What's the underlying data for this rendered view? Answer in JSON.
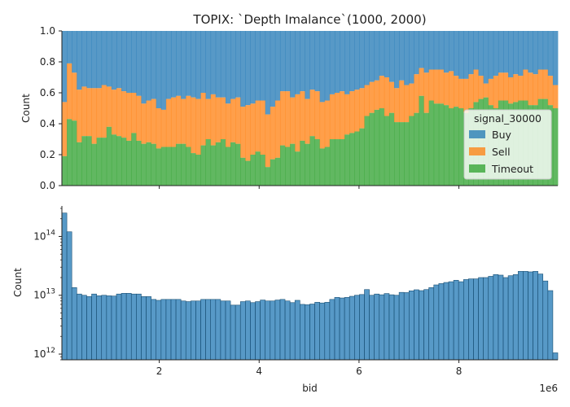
{
  "chart_data": [
    {
      "type": "area",
      "title": "TOPIX: `Depth Imalance`(1000, 2000)",
      "ylabel": "Count",
      "xlabel": "",
      "xlim": [
        50000,
        9980000
      ],
      "ylim": [
        0,
        1.0
      ],
      "yticks": [
        0.0,
        0.2,
        0.4,
        0.6,
        0.8,
        1.0
      ],
      "ytick_labels": [
        "0.0",
        "0.2",
        "0.4",
        "0.6",
        "0.8",
        "1.0"
      ],
      "stacked_normalized": true,
      "legend": {
        "title": "signal_30000",
        "placement": "right",
        "entries": [
          "Buy",
          "Sell",
          "Timeout"
        ]
      },
      "series": [
        {
          "name": "Buy",
          "color": "#1f77b4"
        },
        {
          "name": "Sell",
          "color": "#ff7f0e"
        },
        {
          "name": "Timeout",
          "color": "#2ca02c"
        }
      ],
      "bins": 100,
      "timeout_top": [
        0.19,
        0.43,
        0.42,
        0.28,
        0.32,
        0.32,
        0.27,
        0.31,
        0.31,
        0.38,
        0.33,
        0.32,
        0.31,
        0.29,
        0.34,
        0.29,
        0.27,
        0.28,
        0.27,
        0.24,
        0.25,
        0.25,
        0.25,
        0.27,
        0.27,
        0.25,
        0.21,
        0.2,
        0.26,
        0.3,
        0.26,
        0.28,
        0.3,
        0.25,
        0.28,
        0.27,
        0.18,
        0.16,
        0.2,
        0.22,
        0.2,
        0.12,
        0.17,
        0.18,
        0.26,
        0.25,
        0.27,
        0.22,
        0.29,
        0.27,
        0.32,
        0.3,
        0.24,
        0.25,
        0.3,
        0.3,
        0.3,
        0.33,
        0.34,
        0.35,
        0.37,
        0.45,
        0.47,
        0.49,
        0.5,
        0.45,
        0.47,
        0.41,
        0.41,
        0.41,
        0.45,
        0.47,
        0.58,
        0.47,
        0.55,
        0.53,
        0.53,
        0.52,
        0.5,
        0.51,
        0.5,
        0.47,
        0.5,
        0.54,
        0.56,
        0.57,
        0.52,
        0.5,
        0.55,
        0.55,
        0.53,
        0.54,
        0.55,
        0.55,
        0.52,
        0.52,
        0.56,
        0.56,
        0.52,
        0.5
      ],
      "sell_top": [
        0.54,
        0.79,
        0.73,
        0.62,
        0.64,
        0.63,
        0.63,
        0.63,
        0.65,
        0.64,
        0.62,
        0.63,
        0.61,
        0.6,
        0.6,
        0.58,
        0.53,
        0.55,
        0.56,
        0.5,
        0.49,
        0.56,
        0.57,
        0.58,
        0.56,
        0.58,
        0.57,
        0.56,
        0.6,
        0.56,
        0.59,
        0.57,
        0.57,
        0.53,
        0.56,
        0.57,
        0.51,
        0.52,
        0.53,
        0.55,
        0.55,
        0.46,
        0.51,
        0.55,
        0.61,
        0.61,
        0.57,
        0.59,
        0.61,
        0.56,
        0.62,
        0.61,
        0.54,
        0.55,
        0.59,
        0.6,
        0.61,
        0.59,
        0.61,
        0.62,
        0.63,
        0.65,
        0.67,
        0.68,
        0.71,
        0.7,
        0.67,
        0.63,
        0.68,
        0.65,
        0.66,
        0.72,
        0.76,
        0.73,
        0.75,
        0.75,
        0.75,
        0.73,
        0.74,
        0.71,
        0.69,
        0.69,
        0.72,
        0.75,
        0.71,
        0.66,
        0.69,
        0.71,
        0.73,
        0.73,
        0.7,
        0.72,
        0.71,
        0.75,
        0.73,
        0.72,
        0.75,
        0.75,
        0.71,
        0.65
      ]
    },
    {
      "type": "bar",
      "title": "",
      "xlabel": "bid",
      "ylabel": "Count",
      "yscale": "log",
      "xlim": [
        50000,
        9980000
      ],
      "ylim": [
        800000000000,
        330000000000000
      ],
      "xticks": [
        2000000,
        4000000,
        6000000,
        8000000
      ],
      "xtick_labels": [
        "2",
        "4",
        "6",
        "8"
      ],
      "x_offset_label": "1e6",
      "yticks": [
        1000000000000,
        10000000000000,
        100000000000000
      ],
      "ytick_labels": [
        "10^12",
        "10^13",
        "10^14"
      ],
      "bins": 100,
      "color": "#1f77b4",
      "values": [
        250000000000000,
        120000000000000,
        13500000000000,
        10500000000000,
        10000000000000,
        9500000000000,
        10500000000000,
        9800000000000,
        10000000000000,
        9800000000000,
        9700000000000,
        10500000000000,
        10800000000000,
        10800000000000,
        10500000000000,
        10500000000000,
        9500000000000,
        9500000000000,
        8500000000000,
        8200000000000,
        8500000000000,
        8500000000000,
        8500000000000,
        8500000000000,
        8000000000000,
        7800000000000,
        8000000000000,
        8000000000000,
        8500000000000,
        8500000000000,
        8500000000000,
        8500000000000,
        8000000000000,
        8000000000000,
        6800000000000,
        6800000000000,
        7800000000000,
        8000000000000,
        7500000000000,
        7800000000000,
        8300000000000,
        8000000000000,
        8000000000000,
        8300000000000,
        8500000000000,
        8000000000000,
        7500000000000,
        8200000000000,
        7000000000000,
        6900000000000,
        7100000000000,
        7600000000000,
        7400000000000,
        7600000000000,
        8500000000000,
        9200000000000,
        9000000000000,
        9200000000000,
        9600000000000,
        10000000000000,
        10300000000000,
        12500000000000,
        10000000000000,
        10500000000000,
        10200000000000,
        10700000000000,
        10200000000000,
        10000000000000,
        11200000000000,
        11100000000000,
        11900000000000,
        12400000000000,
        12000000000000,
        12500000000000,
        13500000000000,
        15000000000000,
        15800000000000,
        16500000000000,
        17000000000000,
        18000000000000,
        17000000000000,
        18500000000000,
        19000000000000,
        19000000000000,
        20000000000000,
        20000000000000,
        21000000000000,
        22500000000000,
        22000000000000,
        20000000000000,
        21500000000000,
        22500000000000,
        25500000000000,
        25500000000000,
        25000000000000,
        25500000000000,
        23000000000000,
        17500000000000,
        12000000000000,
        1050000000000
      ]
    }
  ]
}
